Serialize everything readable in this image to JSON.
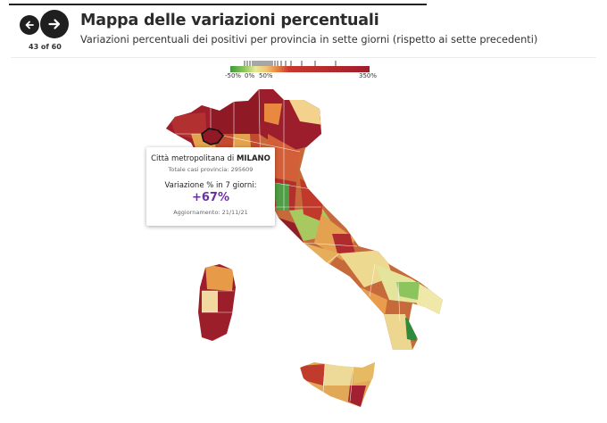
{
  "header": {
    "title": "Mappa delle variazioni percentuali",
    "subtitle": "Variazioni percentuali dei positivi per provincia in sette giorni (rispetto ai sette precedenti)",
    "counter": "43 of 60"
  },
  "legend": {
    "labels": [
      "-50%",
      "0%",
      "50%",
      "350%"
    ],
    "colors": {
      "low": "#3f9b3c",
      "neutral": "#e6ea9a",
      "mid": "#e7823f",
      "high": "#a01d2c"
    }
  },
  "tooltip": {
    "prefix": "Città metropolitana di",
    "province": "MILANO",
    "cases": "Totale casi provincia: 295609",
    "variation_label": "Variazione % in 7 giorni:",
    "variation_value": "+67%",
    "update": "Aggiornamento: 21/11/21"
  },
  "map": {
    "highlighted_province": "MILANO",
    "accent_color": "#6a2fa3"
  }
}
